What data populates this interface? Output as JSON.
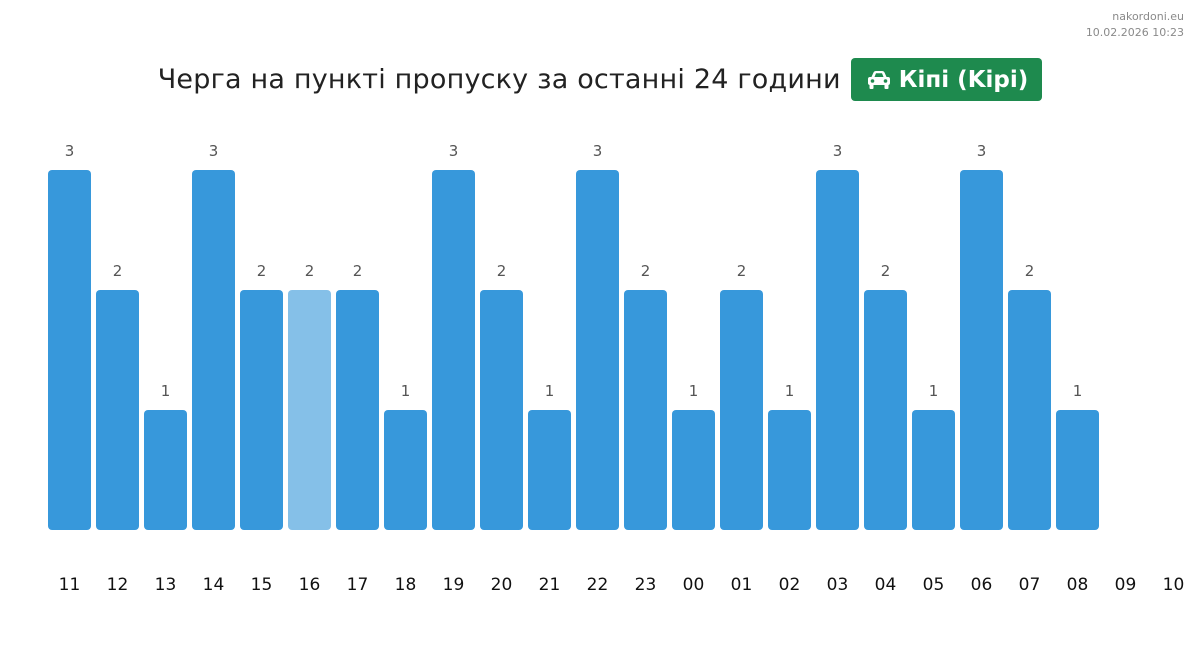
{
  "meta": {
    "site": "nakordoni.eu",
    "timestamp": "10.02.2026 10:23"
  },
  "header": {
    "title": "Черга на пункті пропуску за останні 24 години",
    "checkpoint_label": "Кіпі (Kipi)",
    "checkpoint_icon": "car-icon",
    "badge_color": "#1e8a4e"
  },
  "colors": {
    "bar": "#3798db",
    "bar_highlight": "#85c0e8"
  },
  "chart_data": {
    "type": "bar",
    "title": "Черга на пункті пропуску за останні 24 години",
    "xlabel": "",
    "ylabel": "",
    "categories": [
      "11",
      "12",
      "13",
      "14",
      "15",
      "16",
      "17",
      "18",
      "19",
      "20",
      "21",
      "22",
      "23",
      "00",
      "01",
      "02",
      "03",
      "04",
      "05",
      "06",
      "07",
      "08",
      "09",
      "10"
    ],
    "values": [
      3,
      2,
      1,
      3,
      2,
      2,
      2,
      1,
      3,
      2,
      1,
      3,
      2,
      1,
      2,
      1,
      3,
      2,
      1,
      3,
      2,
      1,
      null,
      null
    ],
    "highlighted_category": "16",
    "ylim": [
      0,
      3
    ],
    "grid": false,
    "legend": "none"
  }
}
